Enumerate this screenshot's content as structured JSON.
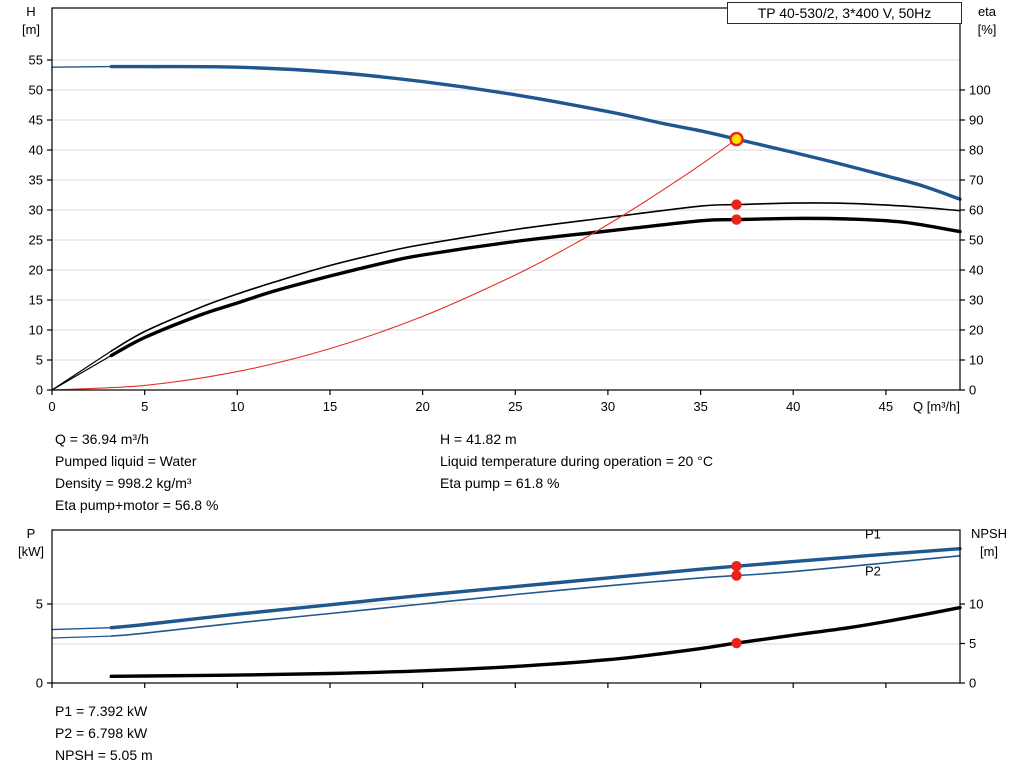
{
  "title_box": "TP 40-530/2, 3*400 V, 50Hz",
  "colors": {
    "blue": "#20578f",
    "black": "#000000",
    "red": "#e53128",
    "marker_red": "#e8231a",
    "marker_yellow": "#ffe000",
    "grid": "#d8d8d8",
    "frame": "#000000"
  },
  "operating_info": {
    "left": [
      "Q = 36.94 m³/h",
      "Pumped liquid = Water",
      "Density = 998.2 kg/m³",
      "Eta pump+motor = 56.8 %"
    ],
    "right": [
      "H = 41.82 m",
      "Liquid temperature during operation = 20 °C",
      "Eta pump = 61.8 %"
    ]
  },
  "power_info": [
    "P1 = 7.392 kW",
    "P2 = 6.798 kW",
    "NPSH = 5.05 m"
  ],
  "chart_data": [
    {
      "type": "line",
      "title": "TP 40-530/2, 3*400 V, 50Hz",
      "grid": "horizontal",
      "plot": {
        "x0": 52,
        "x1": 960,
        "y0": 8,
        "y1": 390
      },
      "x_axis": {
        "label": "Q [m³/h]",
        "min": 0,
        "max": 49,
        "ticks": [
          0,
          5,
          10,
          15,
          20,
          25,
          30,
          35,
          40,
          45
        ],
        "show_tick_labels": true
      },
      "y_left": {
        "label_lines": [
          "H",
          "[m]"
        ],
        "label_x": 31,
        "min": 0,
        "max": 63.67,
        "ticks": [
          0,
          5,
          10,
          15,
          20,
          25,
          30,
          35,
          40,
          45,
          50,
          55
        ]
      },
      "y_right": {
        "label_lines": [
          "eta",
          "[%]"
        ],
        "label_x": 987,
        "min": 0,
        "max": 127.33,
        "ticks": [
          0,
          10,
          20,
          30,
          40,
          50,
          60,
          70,
          80,
          90,
          100
        ]
      },
      "series": [
        {
          "name": "head-lead",
          "axis": "left",
          "color": "blue",
          "width": 1.4,
          "x": [
            0,
            3.2
          ],
          "y": [
            53.8,
            53.9
          ]
        },
        {
          "name": "head",
          "axis": "left",
          "color": "blue",
          "width": 3.4,
          "x": [
            3.2,
            5,
            10,
            15,
            20,
            25,
            30,
            33,
            35,
            36.94,
            40,
            42,
            45,
            47,
            49
          ],
          "y": [
            53.9,
            53.9,
            53.8,
            53.0,
            51.4,
            49.2,
            46.4,
            44.4,
            43.2,
            41.82,
            39.6,
            38.1,
            35.7,
            34.0,
            31.8
          ]
        },
        {
          "name": "eta-pump-lead",
          "axis": "right",
          "color": "black",
          "width": 1.2,
          "x": [
            0,
            3.2
          ],
          "y": [
            0,
            13
          ]
        },
        {
          "name": "eta-pump",
          "axis": "right",
          "color": "black",
          "width": 1.6,
          "x": [
            3.2,
            5,
            8,
            10,
            12,
            15,
            18,
            20,
            25,
            30,
            35,
            36.94,
            40,
            43,
            46,
            49
          ],
          "y": [
            13,
            19.5,
            27.5,
            32,
            36,
            41.5,
            46,
            48.5,
            53.5,
            57.5,
            61.3,
            61.8,
            62.3,
            62.2,
            61.3,
            59.8
          ]
        },
        {
          "name": "eta-pump-motor-lead",
          "axis": "right",
          "color": "black",
          "width": 1.2,
          "x": [
            0,
            3.2
          ],
          "y": [
            0,
            11.5
          ]
        },
        {
          "name": "eta-pump-motor",
          "axis": "right",
          "color": "black",
          "width": 3.4,
          "x": [
            3.2,
            5,
            8,
            10,
            12,
            15,
            18,
            20,
            25,
            30,
            35,
            36.94,
            40,
            43,
            46,
            49
          ],
          "y": [
            11.5,
            17.5,
            25,
            29,
            33,
            38,
            42.5,
            45,
            49.5,
            53,
            56.4,
            56.8,
            57.2,
            57.0,
            55.9,
            52.8
          ]
        },
        {
          "name": "system-curve",
          "axis": "left",
          "color": "red",
          "width": 1.1,
          "x": [
            0,
            5,
            10,
            15,
            20,
            25,
            28,
            30,
            32,
            34,
            35,
            36,
            36.94
          ],
          "y": [
            0,
            0.77,
            3.06,
            6.9,
            12.26,
            19.16,
            24.03,
            27.59,
            31.4,
            35.43,
            37.54,
            39.7,
            41.82
          ]
        }
      ],
      "markers": [
        {
          "name": "duty-point",
          "x": 36.94,
          "y": 41.82,
          "axis": "left",
          "style": "duty"
        },
        {
          "name": "eta-pump-point",
          "x": 36.94,
          "y": 61.8,
          "axis": "right",
          "style": "dot"
        },
        {
          "name": "eta-pump-motor-point",
          "x": 36.94,
          "y": 56.8,
          "axis": "right",
          "style": "dot"
        }
      ],
      "annotations": []
    },
    {
      "type": "line",
      "title": "",
      "grid": "horizontal",
      "plot": {
        "x0": 52,
        "x1": 960,
        "y0": 8,
        "y1": 161
      },
      "x_axis": {
        "label": "",
        "min": 0,
        "max": 49,
        "ticks": [
          0,
          5,
          10,
          15,
          20,
          25,
          30,
          35,
          40,
          45
        ],
        "show_tick_labels": false
      },
      "y_left": {
        "label_lines": [
          "P",
          "[kW]"
        ],
        "label_x": 31,
        "min": 0,
        "max": 9.68,
        "ticks": [
          0,
          5
        ]
      },
      "y_right": {
        "label_lines": [
          "NPSH",
          "[m]"
        ],
        "label_x": 989,
        "min": 0,
        "max": 19.37,
        "ticks": [
          0,
          5,
          10
        ]
      },
      "series": [
        {
          "name": "p1-lead",
          "axis": "left",
          "color": "blue",
          "width": 1.4,
          "x": [
            0,
            3.2
          ],
          "y": [
            3.38,
            3.5
          ]
        },
        {
          "name": "p1",
          "axis": "left",
          "color": "blue",
          "width": 3.4,
          "x": [
            3.2,
            5,
            10,
            15,
            20,
            25,
            30,
            35,
            36.94,
            40,
            45,
            49
          ],
          "y": [
            3.5,
            3.7,
            4.35,
            4.95,
            5.55,
            6.1,
            6.65,
            7.2,
            7.392,
            7.68,
            8.15,
            8.5
          ]
        },
        {
          "name": "p2-lead",
          "axis": "left",
          "color": "blue",
          "width": 1.2,
          "x": [
            0,
            3.2
          ],
          "y": [
            2.85,
            2.97
          ]
        },
        {
          "name": "p2",
          "axis": "left",
          "color": "blue",
          "width": 1.6,
          "x": [
            3.2,
            5,
            10,
            15,
            20,
            25,
            30,
            35,
            36.94,
            40,
            45,
            49
          ],
          "y": [
            2.97,
            3.15,
            3.8,
            4.4,
            5.0,
            5.6,
            6.15,
            6.65,
            6.798,
            7.05,
            7.6,
            8.05
          ]
        },
        {
          "name": "npsh",
          "axis": "right",
          "color": "black",
          "width": 3.4,
          "x": [
            3.2,
            5,
            10,
            15,
            20,
            25,
            30,
            33,
            35,
            36.94,
            40,
            43,
            46,
            49
          ],
          "y": [
            0.85,
            0.88,
            1.0,
            1.2,
            1.55,
            2.1,
            2.95,
            3.75,
            4.35,
            5.05,
            6.05,
            7.0,
            8.2,
            9.55
          ]
        }
      ],
      "markers": [
        {
          "name": "p1-point",
          "x": 36.94,
          "y": 7.392,
          "axis": "left",
          "style": "dot"
        },
        {
          "name": "p2-point",
          "x": 36.94,
          "y": 6.798,
          "axis": "left",
          "style": "dot"
        },
        {
          "name": "npsh-point",
          "x": 36.94,
          "y": 5.05,
          "axis": "right",
          "style": "dot"
        }
      ],
      "annotations": [
        {
          "name": "p1-curve-label",
          "text": "P1",
          "x": 44.3,
          "y": 9.15,
          "axis": "left",
          "color": "blue"
        },
        {
          "name": "p2-curve-label",
          "text": "P2",
          "x": 44.3,
          "y": 6.8,
          "axis": "left",
          "color": "blue"
        }
      ]
    }
  ]
}
